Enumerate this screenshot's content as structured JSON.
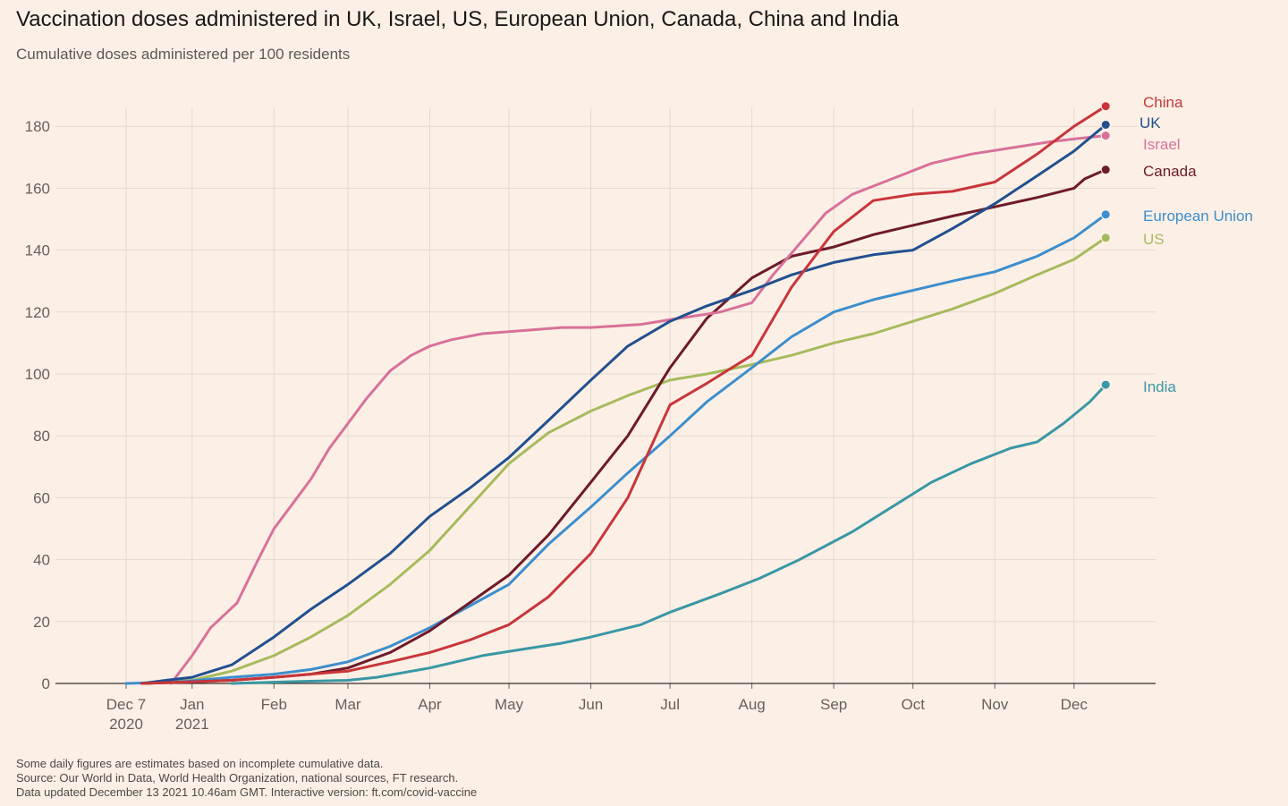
{
  "header": {
    "title": "Vaccination doses administered in UK, Israel, US, European Union, Canada, China and India",
    "subtitle": "Cumulative doses administered per 100 residents"
  },
  "footer": {
    "line1": "Some daily figures are estimates based on incomplete cumulative data.",
    "line2": "Source: Our World in Data, World Health Organization, national sources, FT research.",
    "line3": "Data updated December 13 2021 10.46am GMT. Interactive version: ft.com/covid-vaccine"
  },
  "chart_data": {
    "type": "line",
    "title": "Vaccination doses administered in UK, Israel, US, European Union, Canada, China and India",
    "subtitle": "Cumulative doses administered per 100 residents",
    "x_unit": "days since Dec 7 2020",
    "ylim": [
      0,
      185
    ],
    "xlim": [
      -24,
      371
    ],
    "grid": true,
    "y_ticks": [
      0,
      20,
      40,
      60,
      80,
      100,
      120,
      140,
      160,
      180
    ],
    "x_ticks": [
      {
        "day": 0,
        "label": "Dec 7",
        "label2": "2020"
      },
      {
        "day": 25,
        "label": "Jan",
        "label2": "2021"
      },
      {
        "day": 56,
        "label": "Feb",
        "label2": ""
      },
      {
        "day": 84,
        "label": "Mar",
        "label2": ""
      },
      {
        "day": 115,
        "label": "Apr",
        "label2": ""
      },
      {
        "day": 145,
        "label": "May",
        "label2": ""
      },
      {
        "day": 176,
        "label": "Jun",
        "label2": ""
      },
      {
        "day": 206,
        "label": "Jul",
        "label2": ""
      },
      {
        "day": 237,
        "label": "Aug",
        "label2": ""
      },
      {
        "day": 268,
        "label": "Sep",
        "label2": ""
      },
      {
        "day": 298,
        "label": "Oct",
        "label2": ""
      },
      {
        "day": 329,
        "label": "Nov",
        "label2": ""
      },
      {
        "day": 359,
        "label": "Dec",
        "label2": ""
      }
    ],
    "series": [
      {
        "name": "India",
        "color": "#3a97a4",
        "end_value": 96.5,
        "points": [
          [
            40,
            0
          ],
          [
            60,
            0.5
          ],
          [
            84,
            1
          ],
          [
            95,
            2
          ],
          [
            115,
            5
          ],
          [
            135,
            9
          ],
          [
            150,
            11
          ],
          [
            165,
            13
          ],
          [
            176,
            15
          ],
          [
            195,
            19
          ],
          [
            206,
            23
          ],
          [
            225,
            29
          ],
          [
            240,
            34
          ],
          [
            255,
            40
          ],
          [
            275,
            49
          ],
          [
            290,
            57
          ],
          [
            305,
            65
          ],
          [
            320,
            71
          ],
          [
            335,
            76
          ],
          [
            345,
            78
          ],
          [
            355,
            84
          ],
          [
            365,
            91
          ],
          [
            371,
            96.5
          ]
        ]
      },
      {
        "name": "US",
        "color": "#a6bb5d",
        "end_value": 144,
        "points": [
          [
            6,
            0
          ],
          [
            25,
            1
          ],
          [
            40,
            4
          ],
          [
            56,
            9
          ],
          [
            70,
            15
          ],
          [
            84,
            22
          ],
          [
            100,
            32
          ],
          [
            115,
            43
          ],
          [
            130,
            57
          ],
          [
            145,
            71
          ],
          [
            160,
            81
          ],
          [
            176,
            88
          ],
          [
            190,
            93
          ],
          [
            206,
            98
          ],
          [
            220,
            100
          ],
          [
            237,
            103
          ],
          [
            252,
            106
          ],
          [
            268,
            110
          ],
          [
            283,
            113
          ],
          [
            298,
            117
          ],
          [
            313,
            121
          ],
          [
            329,
            126
          ],
          [
            345,
            132
          ],
          [
            359,
            137
          ],
          [
            371,
            144
          ]
        ]
      },
      {
        "name": "European Union",
        "color": "#3d8ecc",
        "end_value": 151.5,
        "points": [
          [
            0,
            0
          ],
          [
            20,
            0.5
          ],
          [
            40,
            2
          ],
          [
            56,
            3
          ],
          [
            70,
            4.5
          ],
          [
            84,
            7
          ],
          [
            100,
            12
          ],
          [
            115,
            18
          ],
          [
            130,
            25
          ],
          [
            145,
            32
          ],
          [
            160,
            45
          ],
          [
            176,
            57
          ],
          [
            190,
            68
          ],
          [
            206,
            80
          ],
          [
            220,
            91
          ],
          [
            237,
            102
          ],
          [
            252,
            112
          ],
          [
            268,
            120
          ],
          [
            283,
            124
          ],
          [
            298,
            127
          ],
          [
            313,
            130
          ],
          [
            329,
            133
          ],
          [
            345,
            138
          ],
          [
            359,
            144
          ],
          [
            371,
            151.5
          ]
        ]
      },
      {
        "name": "Canada",
        "color": "#6e1a2a",
        "end_value": 166,
        "points": [
          [
            6,
            0
          ],
          [
            25,
            0.5
          ],
          [
            40,
            1
          ],
          [
            56,
            2
          ],
          [
            70,
            3
          ],
          [
            84,
            5
          ],
          [
            100,
            10
          ],
          [
            115,
            17
          ],
          [
            130,
            26
          ],
          [
            145,
            35
          ],
          [
            160,
            48
          ],
          [
            176,
            65
          ],
          [
            190,
            80
          ],
          [
            206,
            102
          ],
          [
            220,
            118
          ],
          [
            237,
            131
          ],
          [
            252,
            138
          ],
          [
            268,
            141
          ],
          [
            283,
            145
          ],
          [
            298,
            148
          ],
          [
            313,
            151
          ],
          [
            329,
            154
          ],
          [
            345,
            157
          ],
          [
            359,
            160
          ],
          [
            363,
            163
          ],
          [
            371,
            166
          ]
        ]
      },
      {
        "name": "Israel",
        "color": "#d8719a",
        "end_value": 177,
        "points": [
          [
            17,
            0
          ],
          [
            25,
            9
          ],
          [
            32,
            18
          ],
          [
            42,
            26
          ],
          [
            50,
            40
          ],
          [
            56,
            50
          ],
          [
            63,
            58
          ],
          [
            70,
            66
          ],
          [
            77,
            76
          ],
          [
            84,
            84
          ],
          [
            91,
            92
          ],
          [
            100,
            101
          ],
          [
            108,
            106
          ],
          [
            115,
            109
          ],
          [
            123,
            111
          ],
          [
            135,
            113
          ],
          [
            150,
            114
          ],
          [
            165,
            115
          ],
          [
            176,
            115
          ],
          [
            195,
            116
          ],
          [
            206,
            117.5
          ],
          [
            225,
            120
          ],
          [
            237,
            123
          ],
          [
            245,
            132
          ],
          [
            255,
            142
          ],
          [
            265,
            152
          ],
          [
            275,
            158
          ],
          [
            290,
            163
          ],
          [
            305,
            168
          ],
          [
            320,
            171
          ],
          [
            335,
            173
          ],
          [
            350,
            175
          ],
          [
            360,
            176
          ],
          [
            371,
            177
          ]
        ]
      },
      {
        "name": "UK",
        "color": "#22508f",
        "end_value": 180.5,
        "points": [
          [
            6,
            0
          ],
          [
            15,
            1
          ],
          [
            25,
            2
          ],
          [
            40,
            6
          ],
          [
            56,
            15
          ],
          [
            70,
            24
          ],
          [
            84,
            32
          ],
          [
            100,
            42
          ],
          [
            115,
            54
          ],
          [
            130,
            63
          ],
          [
            145,
            73
          ],
          [
            160,
            85
          ],
          [
            176,
            98
          ],
          [
            190,
            109
          ],
          [
            206,
            117
          ],
          [
            220,
            122
          ],
          [
            237,
            127
          ],
          [
            252,
            132
          ],
          [
            268,
            136
          ],
          [
            283,
            138.5
          ],
          [
            298,
            140
          ],
          [
            313,
            147
          ],
          [
            329,
            155
          ],
          [
            345,
            164
          ],
          [
            359,
            172
          ],
          [
            371,
            180.5
          ]
        ]
      },
      {
        "name": "China",
        "color": "#c9353a",
        "end_value": 186.5,
        "points": [
          [
            6,
            0
          ],
          [
            25,
            0.5
          ],
          [
            40,
            1
          ],
          [
            56,
            2
          ],
          [
            70,
            3
          ],
          [
            84,
            4
          ],
          [
            100,
            7
          ],
          [
            115,
            10
          ],
          [
            130,
            14
          ],
          [
            145,
            19
          ],
          [
            160,
            28
          ],
          [
            176,
            42
          ],
          [
            190,
            60
          ],
          [
            206,
            90
          ],
          [
            220,
            97
          ],
          [
            237,
            106
          ],
          [
            252,
            128
          ],
          [
            268,
            146
          ],
          [
            283,
            156
          ],
          [
            298,
            158
          ],
          [
            313,
            159
          ],
          [
            329,
            162
          ],
          [
            345,
            171
          ],
          [
            359,
            180
          ],
          [
            371,
            186.5
          ]
        ]
      }
    ]
  }
}
